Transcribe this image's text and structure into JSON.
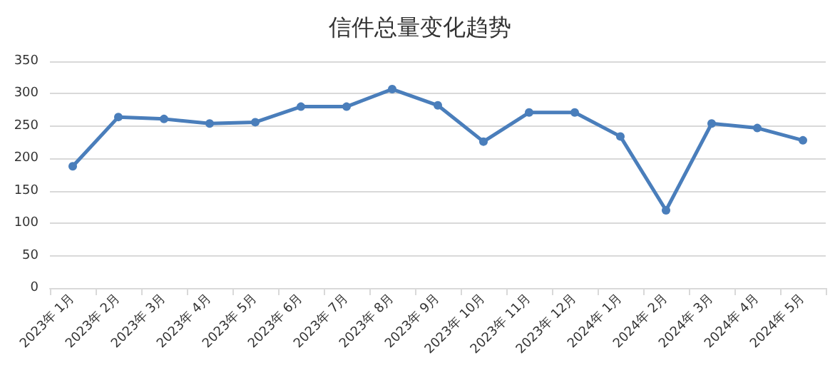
{
  "chart_data": {
    "type": "line",
    "title": "信件总量变化趋势",
    "categories": [
      "2023年 1月",
      "2023年 2月",
      "2023年 3月",
      "2023年 4月",
      "2023年 5月",
      "2023年 6月",
      "2023年 7月",
      "2023年 8月",
      "2023年 9月",
      "2023年 10月",
      "2023年 11月",
      "2023年 12月",
      "2024年 1月",
      "2024年 2月",
      "2024年 3月",
      "2024年 4月",
      "2024年 5月"
    ],
    "series": [
      {
        "color": "#4a7ebb",
        "values": [
          188,
          264,
          261,
          254,
          256,
          280,
          280,
          307,
          282,
          226,
          271,
          271,
          234,
          120,
          254,
          247,
          228
        ]
      }
    ],
    "ylim": [
      0,
      350
    ],
    "yticks": [
      0,
      50,
      100,
      150,
      200,
      250,
      300,
      350
    ],
    "grid": "y",
    "marker": "circle",
    "line_style": "solid"
  }
}
